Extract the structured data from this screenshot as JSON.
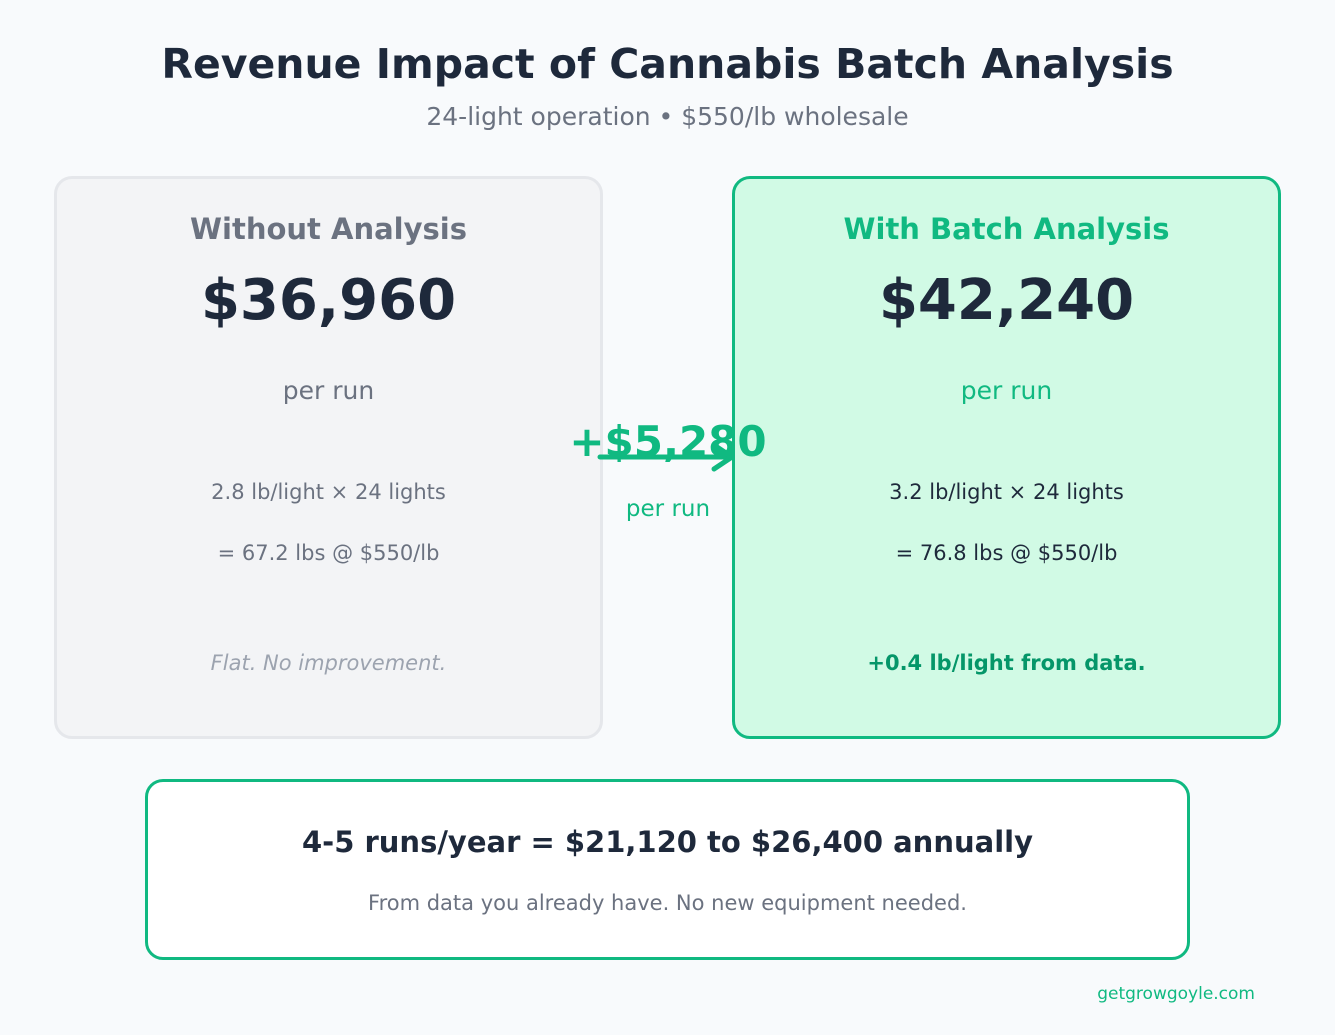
{
  "title": "Revenue Impact of Cannabis Batch Analysis",
  "subtitle": "24-light operation  •  $550/lb wholesale",
  "without": {
    "label": "Without Analysis",
    "amount": "$36,960",
    "per": "per run",
    "calc_line1": "2.8 lb/light × 24 lights",
    "calc_line2": "= 67.2 lbs @ $550/lb",
    "note": "Flat. No improvement."
  },
  "with": {
    "label": "With Batch Analysis",
    "amount": "$42,240",
    "per": "per run",
    "calc_line1": "3.2 lb/light × 24 lights",
    "calc_line2": "= 76.8 lbs @ $550/lb",
    "note": "+0.4 lb/light from data."
  },
  "delta": {
    "amount": "+$5,280",
    "per": "per run"
  },
  "summary": {
    "headline": "4-5 runs/year = $21,120 to $26,400 annually",
    "sub": "From data you already have. No new equipment needed."
  },
  "footer": "getgrowgoyle.com",
  "colors": {
    "accent": "#10b981",
    "accent_dark": "#059669",
    "text_dark": "#1e293b",
    "text_muted": "#6b7280",
    "positive_bg": "#d1fae5",
    "neutral_bg": "#f3f4f6"
  }
}
